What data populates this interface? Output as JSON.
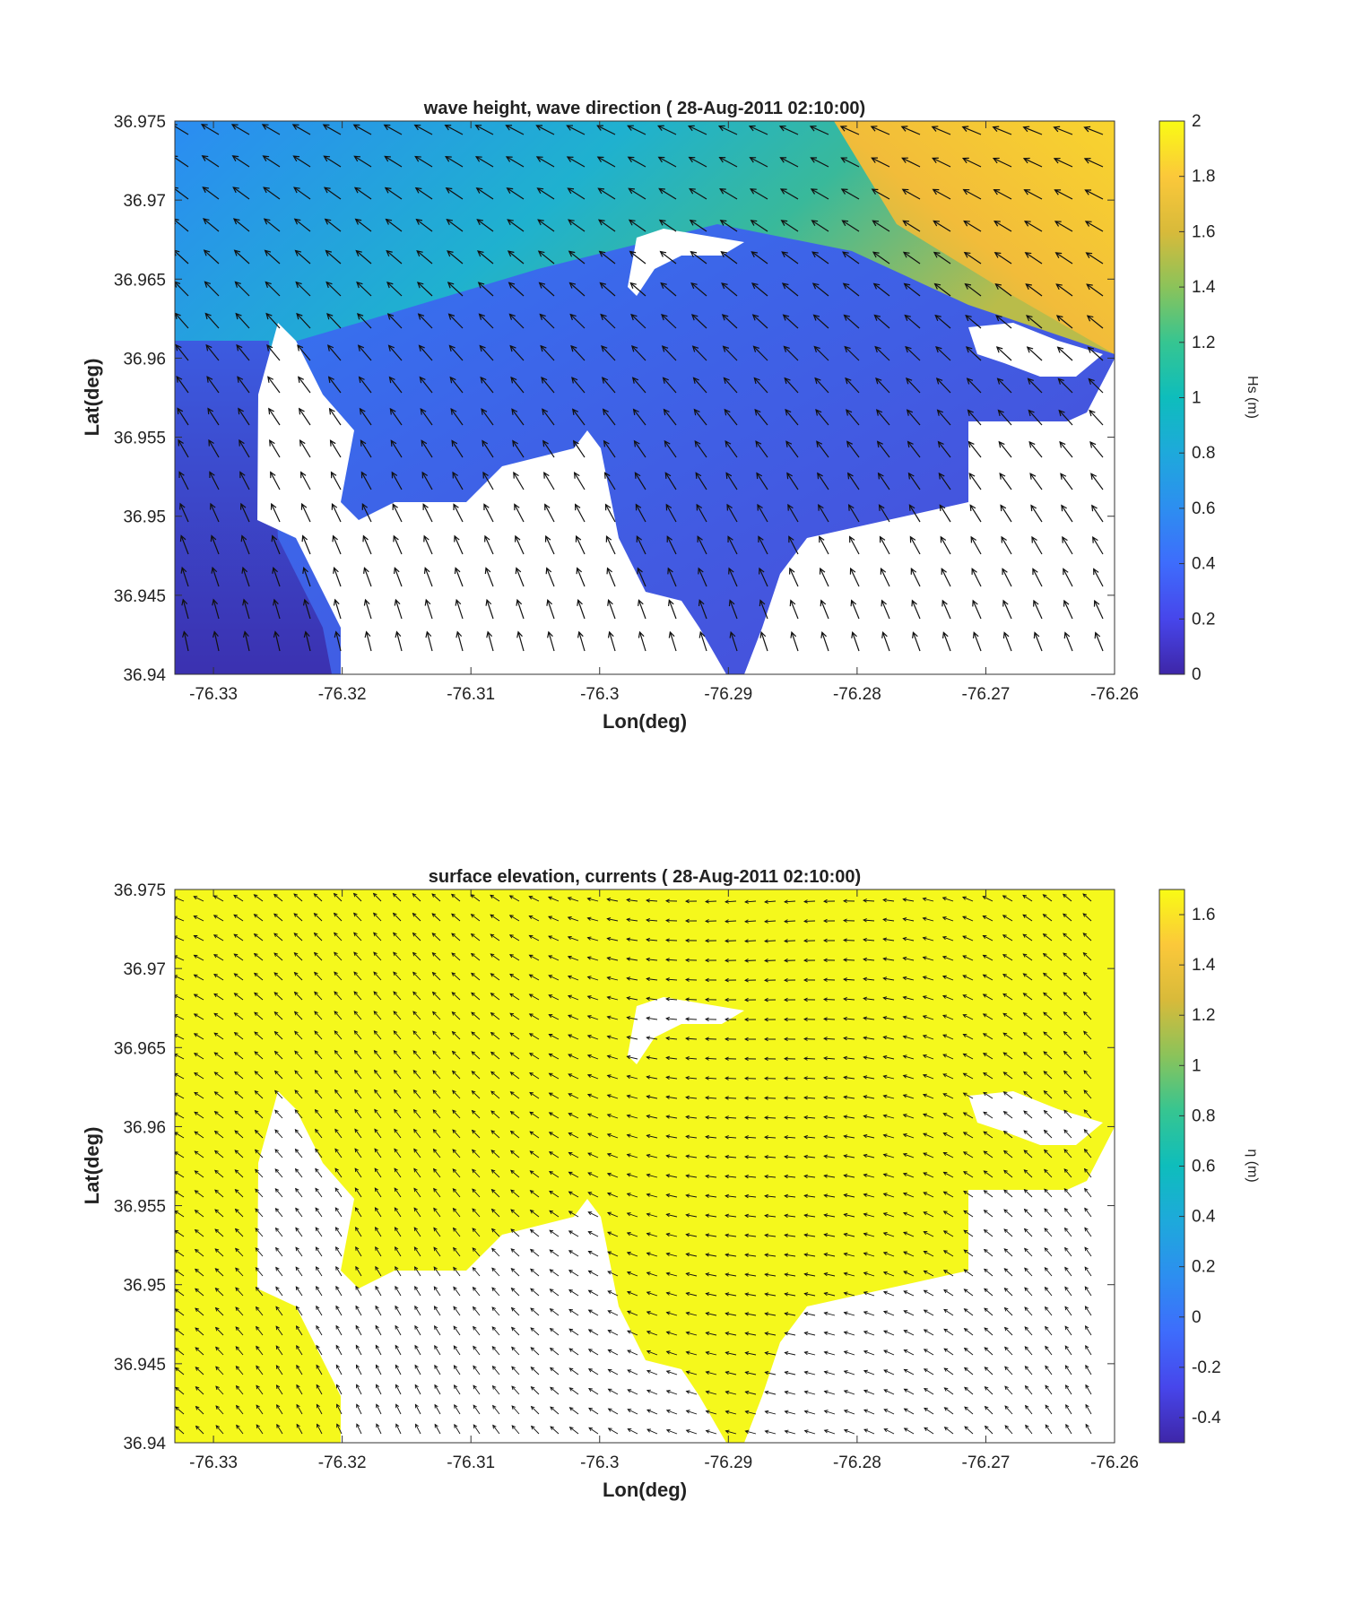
{
  "chart_data": [
    {
      "type": "heatmap",
      "title": "wave height, wave direction ( 28-Aug-2011 02:10:00)",
      "xlabel": "Lon(deg)",
      "ylabel": "Lat(deg)",
      "xlim": [
        -76.333,
        -76.26
      ],
      "ylim": [
        36.94,
        36.975
      ],
      "xticks": [
        -76.33,
        -76.32,
        -76.31,
        -76.3,
        -76.29,
        -76.28,
        -76.27,
        -76.26
      ],
      "xtick_labels": [
        "-76.33",
        "-76.32",
        "-76.31",
        "-76.3",
        "-76.29",
        "-76.28",
        "-76.27",
        "-76.26"
      ],
      "yticks": [
        36.94,
        36.945,
        36.95,
        36.955,
        36.96,
        36.965,
        36.97,
        36.975
      ],
      "ytick_labels": [
        "36.94",
        "36.945",
        "36.95",
        "36.955",
        "36.96",
        "36.965",
        "36.97",
        "36.975"
      ],
      "colorbar": {
        "label": "Hs (m)",
        "limits": [
          0,
          2
        ],
        "ticks": [
          0,
          0.2,
          0.4,
          0.6,
          0.8,
          1,
          1.2,
          1.4,
          1.6,
          1.8,
          2
        ],
        "tick_labels": [
          "0",
          "0.2",
          "0.4",
          "0.6",
          "0.8",
          "1",
          "1.2",
          "1.4",
          "1.6",
          "1.8",
          "2"
        ]
      },
      "colormap": "parula",
      "field": {
        "offshore_northeast": 1.75,
        "channel_north": 0.9,
        "bay_interior": 0.35,
        "west_channel": 0.15
      },
      "arrow_direction_deg": 250,
      "land_color": "#ffffff"
    },
    {
      "type": "heatmap",
      "title": "surface elevation, currents ( 28-Aug-2011 02:10:00)",
      "xlabel": "Lon(deg)",
      "ylabel": "Lat(deg)",
      "xlim": [
        -76.333,
        -76.26
      ],
      "ylim": [
        36.94,
        36.975
      ],
      "xticks": [
        -76.33,
        -76.32,
        -76.31,
        -76.3,
        -76.29,
        -76.28,
        -76.27,
        -76.26
      ],
      "xtick_labels": [
        "-76.33",
        "-76.32",
        "-76.31",
        "-76.3",
        "-76.29",
        "-76.28",
        "-76.27",
        "-76.26"
      ],
      "yticks": [
        36.94,
        36.945,
        36.95,
        36.955,
        36.96,
        36.965,
        36.97,
        36.975
      ],
      "ytick_labels": [
        "36.94",
        "36.945",
        "36.95",
        "36.955",
        "36.96",
        "36.965",
        "36.97",
        "36.975"
      ],
      "colorbar": {
        "label": "η (m)",
        "limits": [
          -0.5,
          1.7
        ],
        "ticks": [
          -0.4,
          -0.2,
          0,
          0.2,
          0.4,
          0.6,
          0.8,
          1,
          1.2,
          1.4,
          1.6
        ],
        "tick_labels": [
          "-0.4",
          "-0.2",
          "0",
          "0.2",
          "0.4",
          "0.6",
          "0.8",
          "1",
          "1.2",
          "1.4",
          "1.6"
        ]
      },
      "colormap": "parula",
      "field": {
        "uniform": 1.7
      },
      "land_color": "#ffffff"
    }
  ]
}
